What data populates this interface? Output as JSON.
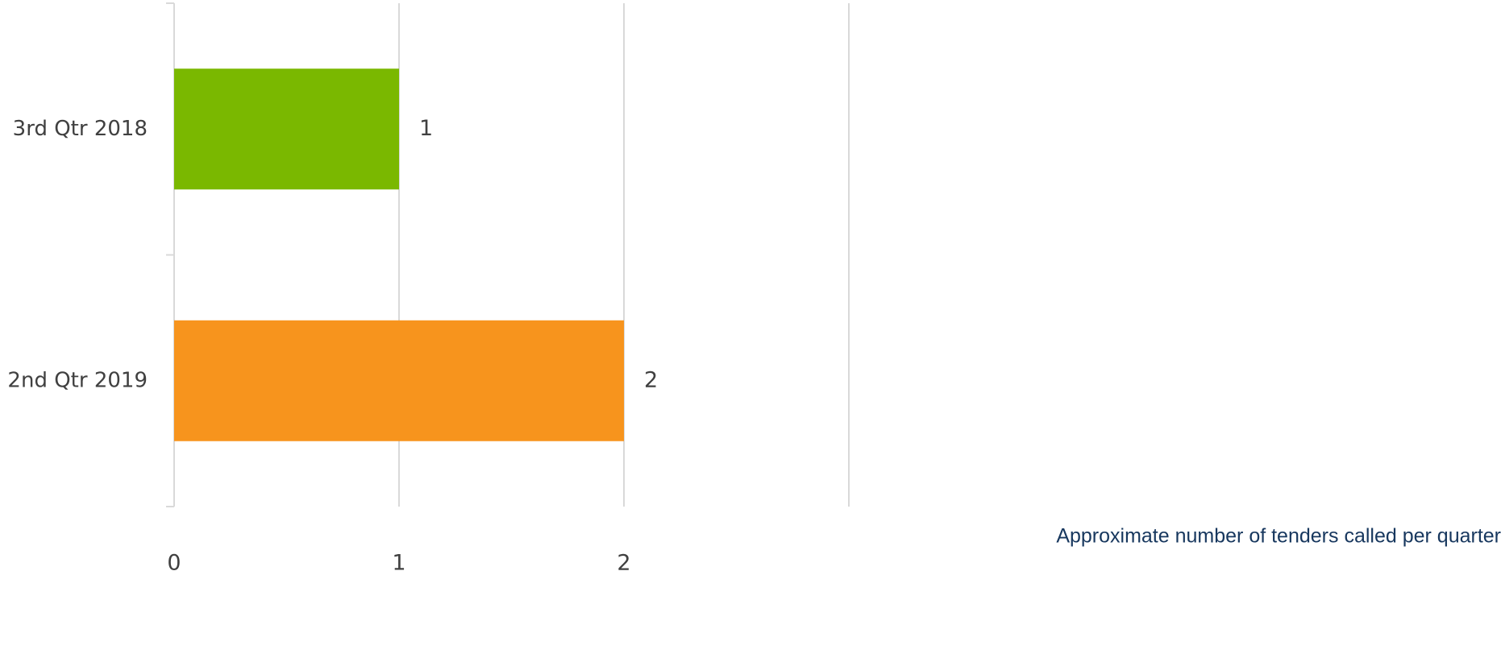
{
  "chart_data": {
    "type": "barh",
    "x_label": "Approximate number of tenders called per quarter",
    "categories": [
      "3rd Qtr 2018",
      "2nd Qtr 2019"
    ],
    "values": [
      1,
      2
    ],
    "colors": [
      "#7ab800",
      "#f7941d"
    ],
    "xlim": [
      0,
      3
    ],
    "xticks": [
      0,
      1,
      2
    ],
    "grid": true
  }
}
